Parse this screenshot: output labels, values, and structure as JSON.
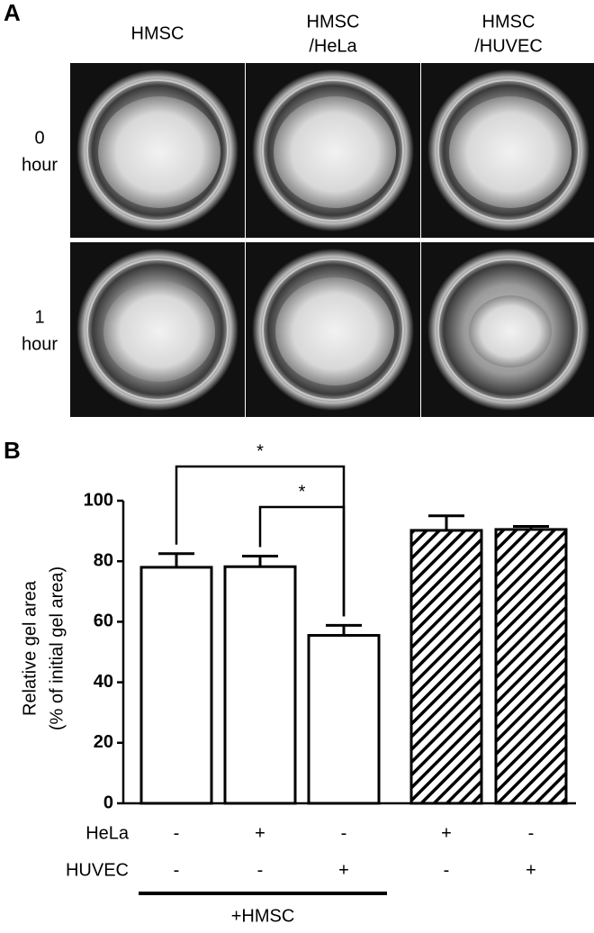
{
  "panel_a": {
    "label": "A",
    "columns": [
      [
        "HMSC"
      ],
      [
        "HMSC",
        "/HeLa"
      ],
      [
        "HMSC",
        "/HUVEC"
      ]
    ],
    "rows": [
      [
        "0",
        "hour"
      ],
      [
        "1",
        "hour"
      ]
    ]
  },
  "chart_data": {
    "type": "bar",
    "label": "B",
    "ylabel": [
      "Relative gel area",
      "(% of initial gel area)"
    ],
    "values": [
      78,
      78.2,
      55.5,
      90.2,
      90.5
    ],
    "errors": [
      4.5,
      3.5,
      3.3,
      4.8,
      1.0
    ],
    "hatched": [
      false,
      false,
      false,
      true,
      true
    ],
    "color": "#000000",
    "ylim": [
      0,
      100
    ],
    "yticks": [
      0,
      20,
      40,
      60,
      80,
      100
    ],
    "condition_rows": [
      {
        "label": "HeLa",
        "marks": [
          "-",
          "+",
          "-",
          "+",
          "-"
        ]
      },
      {
        "label": "HUVEC",
        "marks": [
          "-",
          "-",
          "+",
          "-",
          "+"
        ]
      }
    ],
    "group": {
      "label": "+HMSC",
      "span": [
        0,
        2
      ]
    },
    "annotations": [
      {
        "text": "*",
        "from": 0,
        "to": 2
      },
      {
        "text": "*",
        "from": 1,
        "to": 2
      }
    ]
  }
}
